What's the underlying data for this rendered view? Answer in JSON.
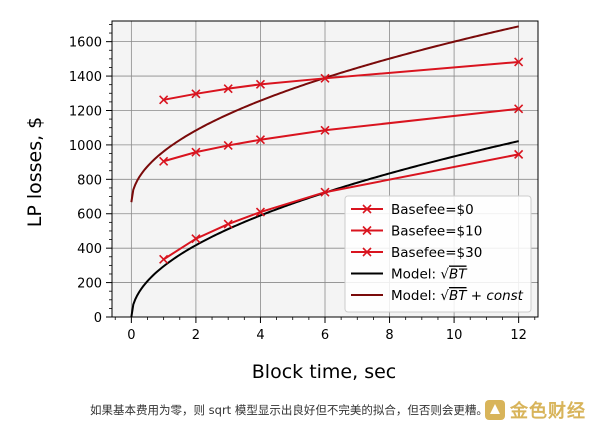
{
  "chart_data": {
    "type": "line",
    "xlabel": "Block time, sec",
    "ylabel": "LP losses, $",
    "xlim": [
      -0.6,
      12.6
    ],
    "ylim": [
      0,
      1720
    ],
    "x_ticks": [
      "0",
      "2",
      "4",
      "6",
      "8",
      "10",
      "12"
    ],
    "y_ticks": [
      "0",
      "200",
      "400",
      "600",
      "800",
      "1000",
      "1200",
      "1400",
      "1600"
    ],
    "grid": true,
    "legend_position": "lower-right",
    "series": [
      {
        "name": "Basefee=$0",
        "color": "#d9141f",
        "marker": "x",
        "x": [
          1,
          2,
          3,
          4,
          6,
          12
        ],
        "y": [
          335,
          455,
          540,
          610,
          725,
          945
        ]
      },
      {
        "name": "Basefee=$10",
        "color": "#d9141f",
        "marker": "x",
        "x": [
          1,
          2,
          3,
          4,
          6,
          12
        ],
        "y": [
          905,
          958,
          997,
          1030,
          1085,
          1210
        ]
      },
      {
        "name": "Basefee=$30",
        "color": "#d9141f",
        "marker": "x",
        "x": [
          1,
          2,
          3,
          4,
          6,
          12
        ],
        "y": [
          1262,
          1297,
          1327,
          1352,
          1387,
          1482
        ]
      },
      {
        "name_prefix": "Model: ",
        "name_sqrt": "BT",
        "name_suffix": "",
        "color": "#000000",
        "marker": "none",
        "model": {
          "a": 295,
          "c": 0
        },
        "x_range": [
          0,
          12
        ]
      },
      {
        "name_prefix": "Model: ",
        "name_sqrt": "BT",
        "name_suffix": " + const",
        "color": "#7a0a0a",
        "marker": "none",
        "model": {
          "a": 295,
          "c": 667
        },
        "x_range": [
          0,
          12
        ]
      }
    ]
  },
  "caption": "如果基本费用为零，则 sqrt 模型显示出良好但不完美的拟合，但否则会更糟。",
  "watermark": "金色财经"
}
